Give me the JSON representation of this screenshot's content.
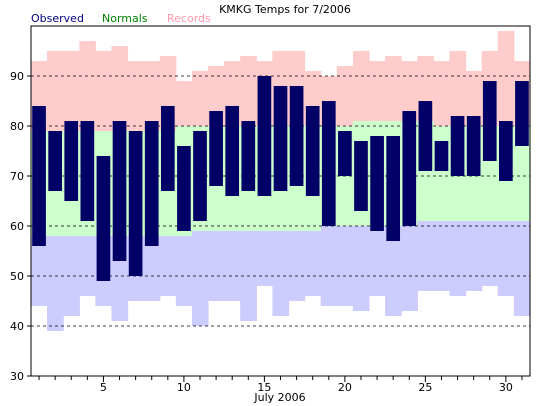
{
  "chart_data": {
    "type": "bar",
    "title": "KMKG Temps for 7/2006",
    "xlabel": "July 2006",
    "ylabel": "",
    "ylim": [
      30,
      100
    ],
    "yticks": [
      30,
      40,
      50,
      60,
      70,
      80,
      90
    ],
    "xticks": [
      5,
      10,
      15,
      20,
      25,
      30
    ],
    "grid": "dashed horizontal",
    "legend": {
      "placement": "top-left",
      "entries": [
        {
          "label": "Observed",
          "color": "#000080"
        },
        {
          "label": "Normals",
          "color": "#008000"
        },
        {
          "label": "Records",
          "color": "#ff99aa"
        }
      ]
    },
    "days": [
      1,
      2,
      3,
      4,
      5,
      6,
      7,
      8,
      9,
      10,
      11,
      12,
      13,
      14,
      15,
      16,
      17,
      18,
      19,
      20,
      21,
      22,
      23,
      24,
      25,
      26,
      27,
      28,
      29,
      30,
      31
    ],
    "series": [
      {
        "name": "Records",
        "color": "#ffcccc",
        "high": [
          93,
          95,
          95,
          97,
          95,
          96,
          93,
          93,
          94,
          89,
          91,
          92,
          93,
          94,
          93,
          95,
          95,
          91,
          90,
          92,
          95,
          93,
          94,
          93,
          94,
          93,
          95,
          91,
          95,
          99,
          93
        ],
        "low": [
          44,
          39,
          42,
          46,
          44,
          41,
          45,
          45,
          46,
          44,
          40,
          45,
          45,
          41,
          48,
          42,
          45,
          46,
          44,
          44,
          43,
          46,
          42,
          43,
          47,
          47,
          46,
          47,
          48,
          46,
          42
        ]
      },
      {
        "name": "Normals",
        "high_color": "#ccffcc",
        "low_color": "#ccccff",
        "high": [
          79,
          79,
          79,
          79,
          79,
          79,
          79,
          79,
          79,
          80,
          80,
          80,
          80,
          80,
          80,
          80,
          80,
          80,
          80,
          80,
          81,
          81,
          81,
          81,
          81,
          80,
          80,
          80,
          80,
          80,
          80
        ],
        "low": [
          58,
          58,
          58,
          58,
          58,
          58,
          58,
          58,
          58,
          58,
          59,
          59,
          59,
          59,
          59,
          59,
          59,
          59,
          60,
          60,
          60,
          60,
          60,
          60,
          61,
          61,
          61,
          61,
          61,
          61,
          61
        ]
      },
      {
        "name": "Observed",
        "color": "#000066",
        "high": [
          84,
          79,
          81,
          81,
          74,
          81,
          79,
          81,
          84,
          76,
          79,
          83,
          84,
          81,
          90,
          88,
          88,
          84,
          85,
          79,
          77,
          78,
          78,
          83,
          85,
          77,
          82,
          82,
          89,
          81,
          89
        ],
        "low": [
          56,
          67,
          65,
          61,
          49,
          53,
          50,
          56,
          67,
          59,
          61,
          68,
          66,
          67,
          66,
          67,
          68,
          66,
          60,
          70,
          63,
          59,
          57,
          60,
          71,
          71,
          70,
          70,
          73,
          69,
          76
        ]
      }
    ]
  }
}
